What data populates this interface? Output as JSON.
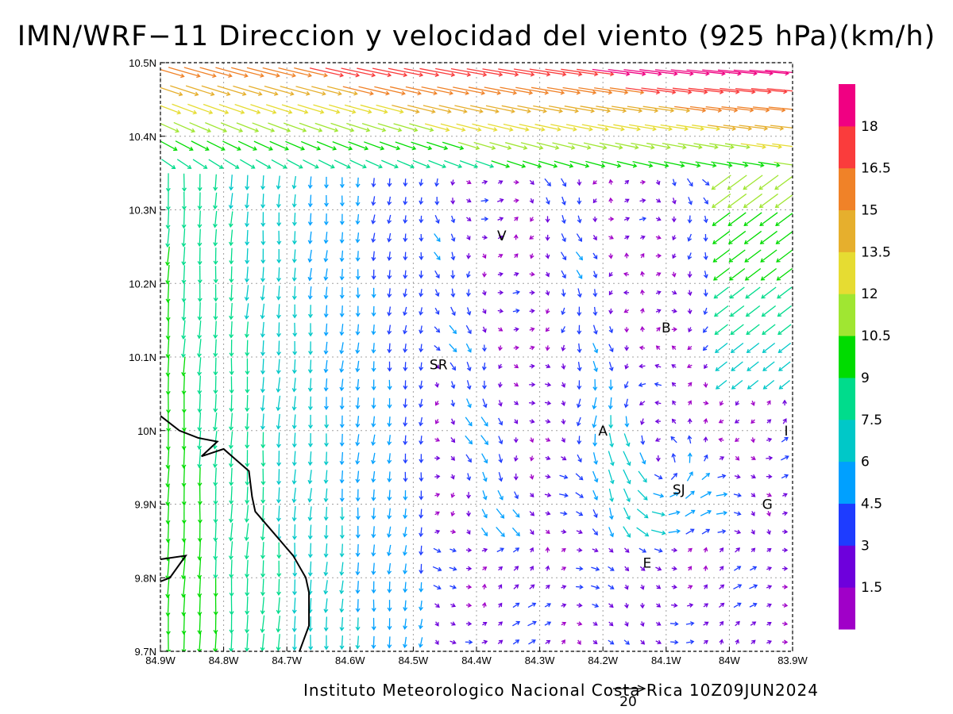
{
  "title": "IMN/WRF−11 Direccion y velocidad del viento (925 hPa)(km/h)",
  "footer": "Instituto Meteorologico Nacional Costa Rica  10Z09JUN2024",
  "reference_vector_label": "20",
  "map": {
    "lon_range": [
      -84.9,
      -83.9
    ],
    "lat_range": [
      9.7,
      10.5
    ],
    "grid": "dotted",
    "x_ticks": [
      {
        "value": -84.9,
        "label": "84.9W"
      },
      {
        "value": -84.8,
        "label": "84.8W"
      },
      {
        "value": -84.7,
        "label": "84.7W"
      },
      {
        "value": -84.6,
        "label": "84.6W"
      },
      {
        "value": -84.5,
        "label": "84.5W"
      },
      {
        "value": -84.4,
        "label": "84.4W"
      },
      {
        "value": -84.3,
        "label": "84.3W"
      },
      {
        "value": -84.2,
        "label": "84.2W"
      },
      {
        "value": -84.1,
        "label": "84.1W"
      },
      {
        "value": -84.0,
        "label": "84W"
      },
      {
        "value": -83.9,
        "label": "83.9W"
      }
    ],
    "y_ticks": [
      {
        "value": 9.7,
        "label": "9.7N"
      },
      {
        "value": 9.8,
        "label": "9.8N"
      },
      {
        "value": 9.9,
        "label": "9.9N"
      },
      {
        "value": 10.0,
        "label": "10N"
      },
      {
        "value": 10.1,
        "label": "10.1N"
      },
      {
        "value": 10.2,
        "label": "10.2N"
      },
      {
        "value": 10.3,
        "label": "10.3N"
      },
      {
        "value": 10.4,
        "label": "10.4N"
      },
      {
        "value": 10.5,
        "label": "10.5N"
      }
    ],
    "places": [
      {
        "label": "V",
        "lon": -84.36,
        "lat": 10.265
      },
      {
        "label": "B",
        "lon": -84.1,
        "lat": 10.14
      },
      {
        "label": "SR",
        "lon": -84.46,
        "lat": 10.09
      },
      {
        "label": "A",
        "lon": -84.2,
        "lat": 10.0
      },
      {
        "label": "I",
        "lon": -83.91,
        "lat": 10.0
      },
      {
        "label": "SJ",
        "lon": -84.08,
        "lat": 9.92
      },
      {
        "label": "G",
        "lon": -83.94,
        "lat": 9.9
      },
      {
        "label": "E",
        "lon": -84.13,
        "lat": 9.82
      }
    ],
    "coastline_mainland": [
      [
        -84.9,
        10.02
      ],
      [
        -84.87,
        10.0
      ],
      [
        -84.84,
        9.99
      ],
      [
        -84.81,
        9.985
      ],
      [
        -84.835,
        9.965
      ],
      [
        -84.8,
        9.975
      ],
      [
        -84.78,
        9.96
      ],
      [
        -84.76,
        9.945
      ],
      [
        -84.755,
        9.91
      ],
      [
        -84.75,
        9.89
      ],
      [
        -84.73,
        9.87
      ],
      [
        -84.71,
        9.85
      ],
      [
        -84.69,
        9.83
      ],
      [
        -84.67,
        9.8
      ],
      [
        -84.665,
        9.78
      ],
      [
        -84.665,
        9.735
      ],
      [
        -84.68,
        9.7
      ]
    ],
    "coastline_peninsula": [
      [
        -84.9,
        9.825
      ],
      [
        -84.86,
        9.83
      ],
      [
        -84.885,
        9.8
      ],
      [
        -84.9,
        9.795
      ]
    ]
  },
  "colorbar": {
    "levels": [
      1.5,
      3,
      4.5,
      6,
      7.5,
      9,
      10.5,
      12,
      13.5,
      15,
      16.5,
      18
    ],
    "labels": [
      "1.5",
      "3",
      "4.5",
      "6",
      "7.5",
      "9",
      "10.5",
      "12",
      "13.5",
      "15",
      "16.5",
      "18"
    ],
    "colors": [
      "#a000c8",
      "#6e00dc",
      "#1e3cff",
      "#00a0ff",
      "#00c8c8",
      "#00dc8c",
      "#00dc00",
      "#a0e632",
      "#e6dc32",
      "#e6af2d",
      "#f08228",
      "#fa3c3c",
      "#f00082"
    ]
  },
  "wind_field": {
    "grid_spacing_deg": 0.025,
    "vortex_center": {
      "lon": -84.1,
      "lat": 9.96
    }
  }
}
